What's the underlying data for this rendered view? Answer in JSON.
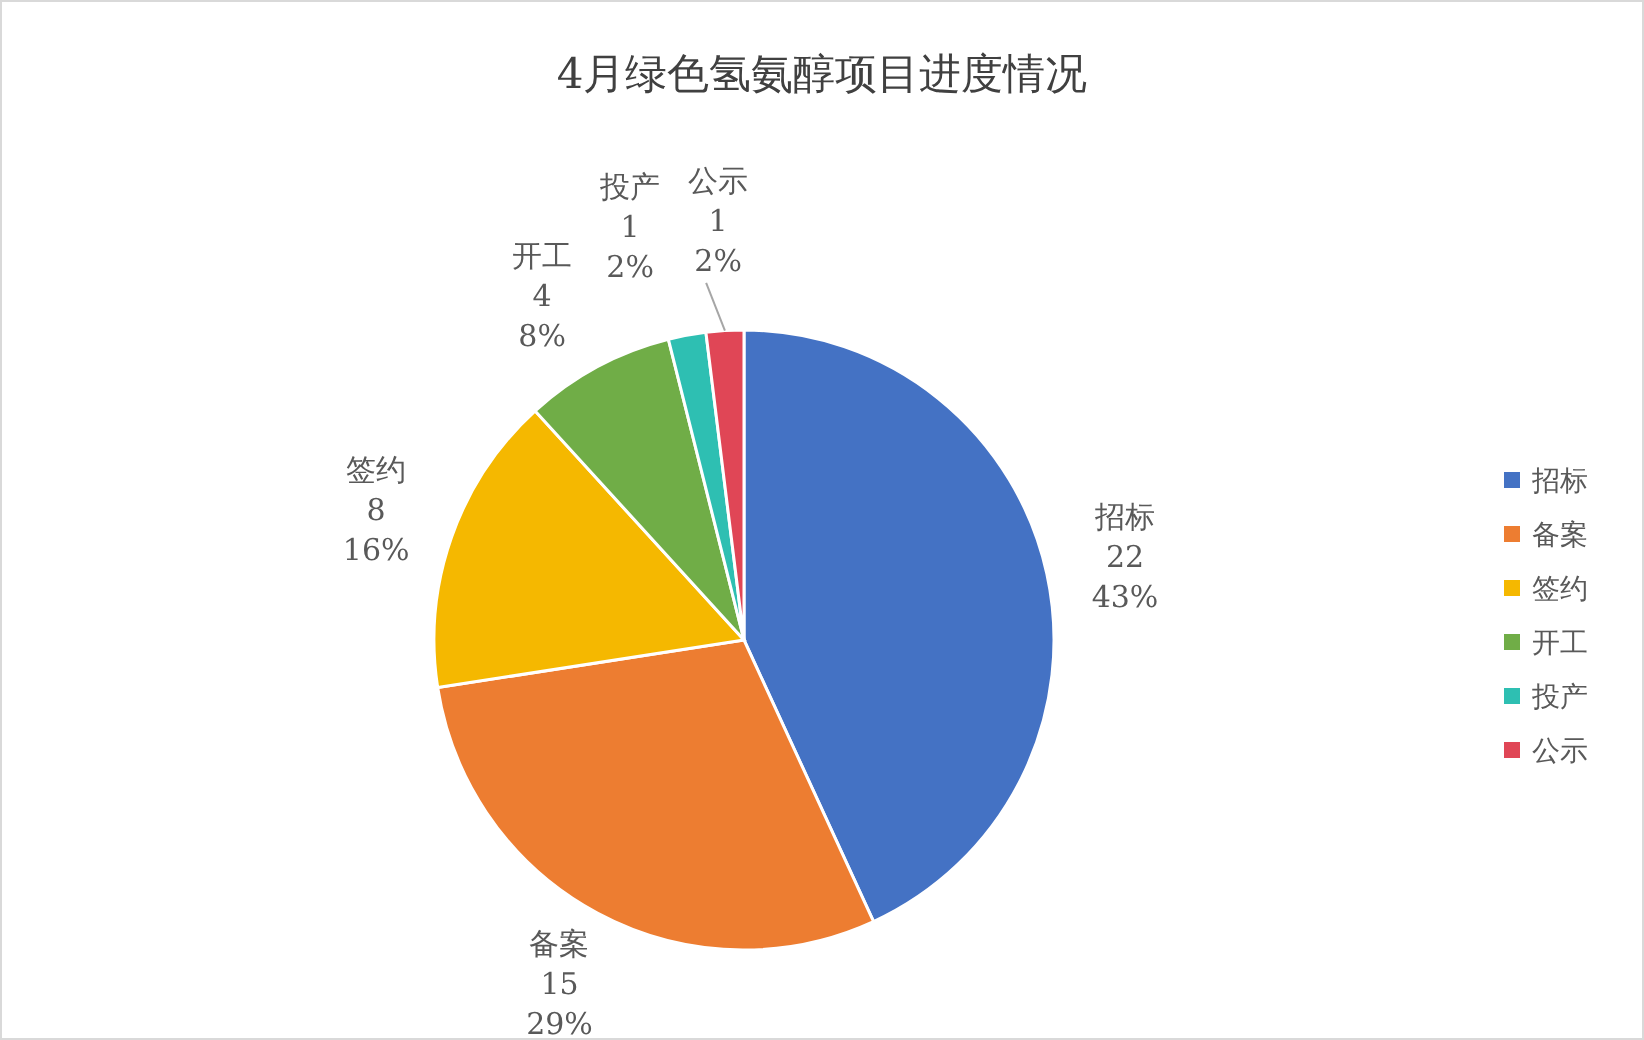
{
  "chart_data": {
    "type": "pie",
    "title": "4月绿色氢氨醇项目进度情况",
    "categories": [
      "招标",
      "备案",
      "签约",
      "开工",
      "投产",
      "公示"
    ],
    "values": [
      22,
      15,
      8,
      4,
      1,
      1
    ],
    "value_labels": [
      "22\n43%",
      "15\n29%",
      "8\n16%",
      "4\n8%",
      "1\n2%",
      "1\n2%"
    ],
    "colors": [
      "#4472c4",
      "#ed7d31",
      "#f5b800",
      "#70ad47",
      "#2ebfb2",
      "#e04656"
    ],
    "legend": "right"
  }
}
